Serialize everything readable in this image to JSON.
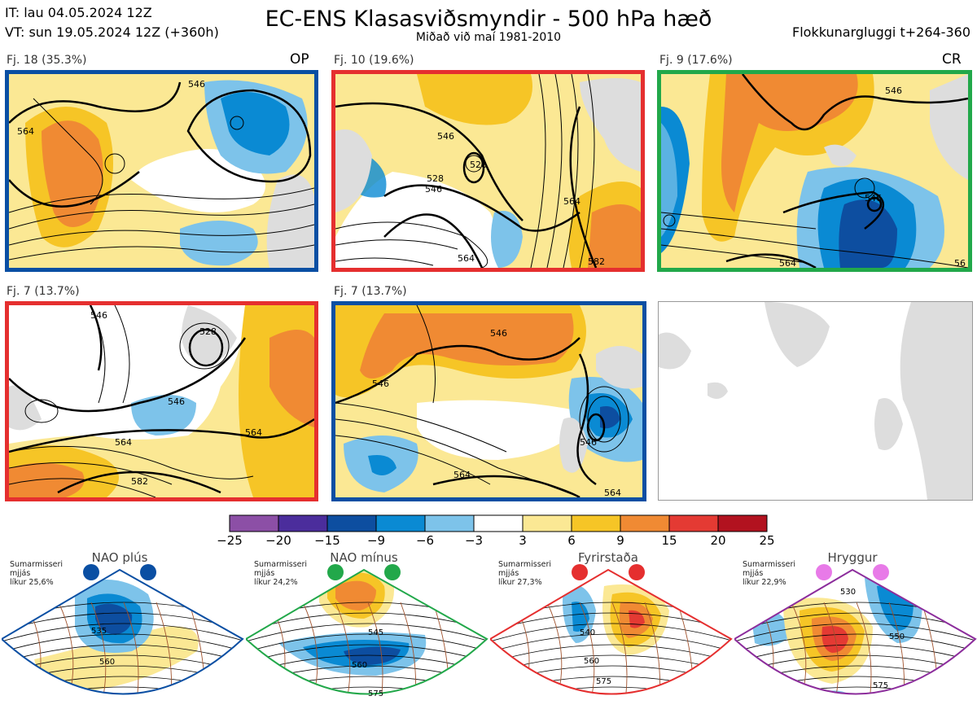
{
  "header": {
    "it_line": "IT: lau 04.05.2024 12Z",
    "vt_line": "VT: sun 19.05.2024 12Z  (+360h)",
    "title": "EC-ENS Klasasviðsmyndir - 500 hPa hæð",
    "subtitle": "Miðað við maí 1981-2010",
    "window": "Flokkunargluggi t+264-360"
  },
  "panels": [
    {
      "label": "Fj. 18 (35.3%)",
      "tag": "OP",
      "border": "#0a4fa3",
      "contours": [
        "546",
        "564"
      ]
    },
    {
      "label": "Fj. 10 (19.6%)",
      "tag": "",
      "border": "#e52f2f",
      "contours": [
        "546",
        "528",
        "528",
        "546",
        "564",
        "564",
        "582"
      ]
    },
    {
      "label": "Fj. 9 (17.6%)",
      "tag": "CR",
      "border": "#22a84a",
      "contours": [
        "546",
        "546",
        "564",
        "56"
      ]
    },
    {
      "label": "Fj. 7 (13.7%)",
      "tag": "",
      "border": "#e52f2f",
      "contours": [
        "528",
        "546",
        "564",
        "564",
        "582",
        "546"
      ]
    },
    {
      "label": "Fj. 7 (13.7%)",
      "tag": "",
      "border": "#0a4fa3",
      "contours": [
        "546",
        "546",
        "546",
        "564",
        "564"
      ]
    }
  ],
  "colorbar": {
    "ticks": [
      "−25",
      "−20",
      "−15",
      "−9",
      "−6",
      "−3",
      "3",
      "6",
      "9",
      "15",
      "20",
      "25"
    ],
    "colors": [
      "#8c4fa6",
      "#4b2d9c",
      "#0d4ea0",
      "#0a8ad3",
      "#7dc3ea",
      "#ffffff",
      "#fbe894",
      "#f6c526",
      "#f08a33",
      "#e43a33",
      "#b2121f"
    ]
  },
  "regimes": [
    {
      "name": "NAO plús",
      "season": "Sumarmisseri",
      "smooth": "mjjás",
      "likelihood": "líkur 25,6%",
      "dot_color": "#0a4fa3",
      "border": "#0a4fa3",
      "contours": [
        "535",
        "560"
      ]
    },
    {
      "name": "NAO mínus",
      "season": "Sumarmisseri",
      "smooth": "mjjás",
      "likelihood": "líkur 24,2%",
      "dot_color": "#22a84a",
      "border": "#22a84a",
      "contours": [
        "545",
        "560",
        "575"
      ]
    },
    {
      "name": "Fyrirstaða",
      "season": "Sumarmisseri",
      "smooth": "mjjás",
      "likelihood": "líkur 27,3%",
      "dot_color": "#e52f2f",
      "border": "#e52f2f",
      "contours": [
        "540",
        "560",
        "575"
      ]
    },
    {
      "name": "Hryggur",
      "season": "Sumarmisseri",
      "smooth": "mjjás",
      "likelihood": "líkur 22,9%",
      "dot_color": "#e87ae8",
      "border": "#8c2d9c",
      "contours": [
        "530",
        "550",
        "575"
      ]
    }
  ]
}
